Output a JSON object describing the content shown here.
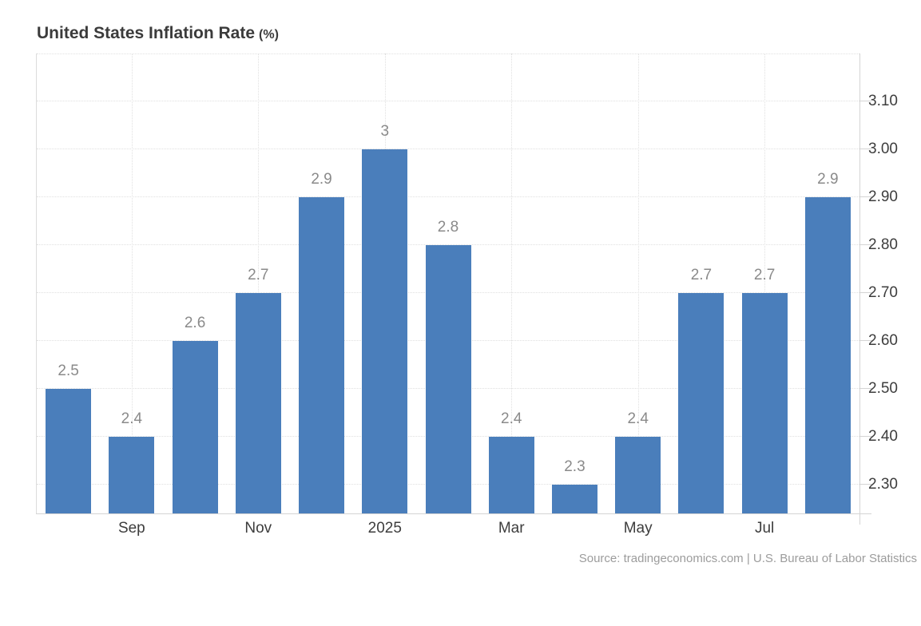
{
  "title": {
    "main": "United States Inflation Rate",
    "unit": "(%)"
  },
  "source": "Source: tradingeconomics.com | U.S. Bureau of Labor Statistics",
  "colors": {
    "bar": "#4a7ebb",
    "value_label": "#8a8a8a",
    "axis_label": "#3d3d3d",
    "grid": "#e0e0e0",
    "axis_line": "#d4d4d4",
    "title": "#3b3b3b",
    "source_text": "#9c9c9c",
    "background": "#ffffff"
  },
  "chart_data": {
    "type": "bar",
    "title": "United States Inflation Rate (%)",
    "xlabel": "",
    "ylabel": "",
    "values": [
      2.5,
      2.4,
      2.6,
      2.7,
      2.9,
      3,
      2.8,
      2.4,
      2.3,
      2.4,
      2.7,
      2.7,
      2.9
    ],
    "bar_value_labels": [
      "2.5",
      "2.4",
      "2.6",
      "2.7",
      "2.9",
      "3",
      "2.8",
      "2.4",
      "2.3",
      "2.4",
      "2.7",
      "2.7",
      "2.9"
    ],
    "x_tick_labels": [
      "Sep",
      "Nov",
      "2025",
      "Mar",
      "May",
      "Jul"
    ],
    "x_tick_bar_indices": [
      1,
      3,
      5,
      7,
      9,
      11
    ],
    "y_tick_labels": [
      "2.30",
      "2.40",
      "2.50",
      "2.60",
      "2.70",
      "2.80",
      "2.90",
      "3.00",
      "3.10"
    ],
    "y_tick_values": [
      2.3,
      2.4,
      2.5,
      2.6,
      2.7,
      2.8,
      2.9,
      3.0,
      3.1
    ],
    "ylim": [
      2.24,
      3.2
    ],
    "y_axis_side": "right",
    "grid": true,
    "legend": null,
    "bar_color": "#4a7ebb"
  }
}
